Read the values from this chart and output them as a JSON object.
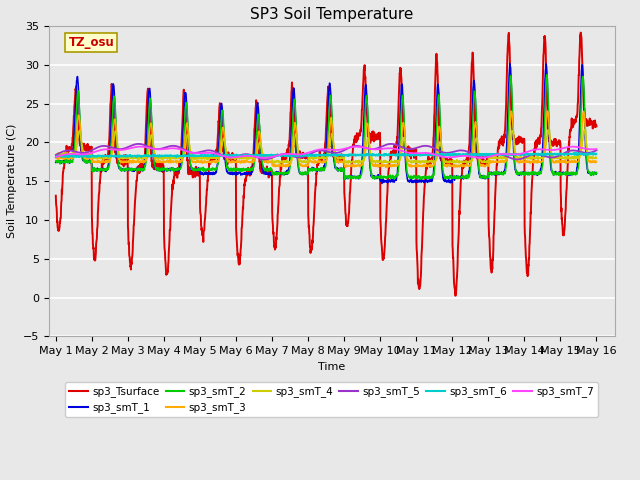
{
  "title": "SP3 Soil Temperature",
  "ylabel": "Soil Temperature (C)",
  "xlabel": "Time",
  "ylim": [
    -5,
    35
  ],
  "annotation_text": "TZ_osu",
  "annotation_color": "#cc0000",
  "annotation_bg": "#ffffcc",
  "annotation_border": "#aa9900",
  "bg_color": "#e8e8e8",
  "grid_color": "#ffffff",
  "fig_bg": "#e8e8e8",
  "series_order": [
    "sp3_Tsurface",
    "sp3_smT_1",
    "sp3_smT_2",
    "sp3_smT_3",
    "sp3_smT_4",
    "sp3_smT_5",
    "sp3_smT_6",
    "sp3_smT_7"
  ],
  "series_colors": {
    "sp3_Tsurface": "#dd0000",
    "sp3_smT_1": "#0000dd",
    "sp3_smT_2": "#00cc00",
    "sp3_smT_3": "#ffaa00",
    "sp3_smT_4": "#cccc00",
    "sp3_smT_5": "#9933cc",
    "sp3_smT_6": "#00cccc",
    "sp3_smT_7": "#ff44ff"
  },
  "xtick_labels": [
    "May 1",
    "May 2",
    "May 3",
    "May 4",
    "May 5",
    "May 6",
    "May 7",
    "May 8",
    "May 9",
    "May 10",
    "May 11",
    "May 12",
    "May 13",
    "May 14",
    "May 15",
    "May 16"
  ],
  "ytick_positions": [
    -5,
    0,
    5,
    10,
    15,
    20,
    25,
    30,
    35
  ],
  "n_days": 15,
  "pts_per_day": 144,
  "surface_peaks": [
    27.0,
    27.5,
    27.0,
    26.5,
    25.0,
    25.0,
    27.0,
    27.0,
    29.5,
    29.5,
    31.0,
    31.5,
    34.0,
    34.0,
    34.0
  ],
  "surface_nights": [
    8.5,
    5.0,
    4.0,
    3.0,
    8.0,
    4.5,
    6.5,
    6.0,
    9.0,
    5.0,
    1.0,
    0.5,
    3.5,
    3.0,
    8.0
  ],
  "smT1_peaks": [
    28.5,
    27.5,
    27.0,
    26.5,
    25.0,
    25.0,
    27.0,
    27.5,
    27.5,
    27.5,
    27.5,
    28.0,
    30.0,
    30.0,
    30.0
  ],
  "smT1_nights": [
    17.5,
    16.5,
    16.5,
    16.5,
    16.0,
    16.0,
    16.0,
    16.5,
    15.5,
    15.0,
    15.0,
    15.5,
    16.0,
    16.0,
    16.0
  ],
  "smT2_peaks": [
    26.5,
    26.0,
    25.5,
    25.0,
    24.0,
    23.5,
    25.5,
    26.0,
    26.0,
    26.0,
    26.0,
    26.5,
    28.5,
    28.5,
    28.5
  ],
  "smT2_nights": [
    17.5,
    16.5,
    16.5,
    16.5,
    16.5,
    16.5,
    16.0,
    16.5,
    15.5,
    15.5,
    15.5,
    15.5,
    16.0,
    16.0,
    16.0
  ],
  "smT3_peaks": [
    23.5,
    23.0,
    22.5,
    22.5,
    22.0,
    21.5,
    22.5,
    23.0,
    22.5,
    22.5,
    22.0,
    22.5,
    24.0,
    24.0,
    24.0
  ],
  "smT3_nights": [
    18.0,
    17.5,
    17.5,
    17.5,
    17.5,
    17.5,
    17.0,
    17.5,
    17.0,
    17.0,
    17.0,
    17.0,
    17.5,
    17.5,
    17.5
  ],
  "smT4_peaks": [
    21.5,
    21.5,
    21.0,
    21.0,
    20.5,
    20.0,
    21.0,
    21.0,
    20.5,
    20.5,
    20.0,
    20.5,
    21.5,
    21.5,
    21.5
  ],
  "smT4_nights": [
    18.5,
    18.0,
    18.0,
    18.0,
    18.0,
    18.0,
    17.5,
    18.0,
    17.5,
    17.5,
    17.5,
    17.5,
    18.0,
    18.0,
    18.0
  ]
}
